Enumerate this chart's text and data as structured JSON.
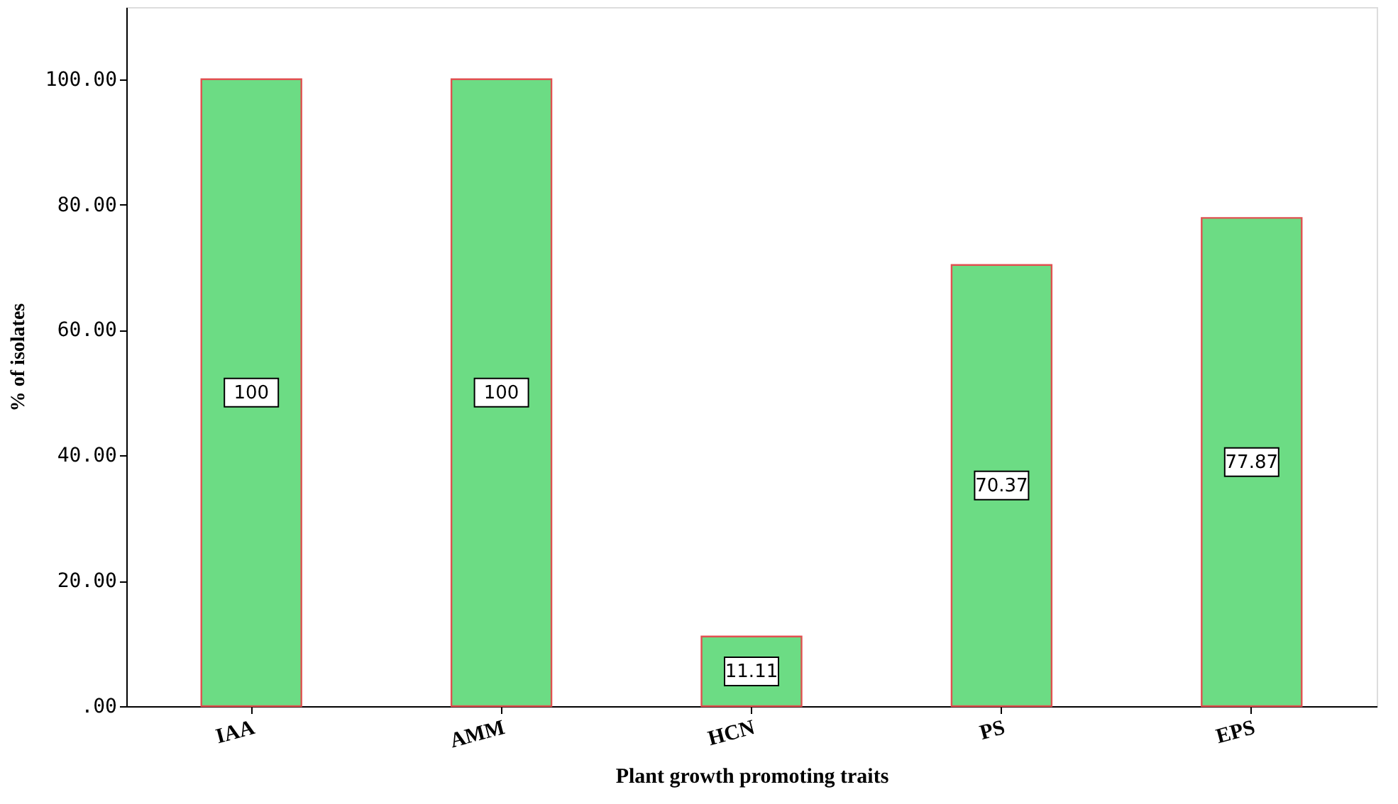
{
  "chart_data": {
    "type": "bar",
    "xlabel": "Plant growth promoting traits",
    "ylabel": "% of isolates",
    "categories": [
      "IAA",
      "AMM",
      "HCN",
      "PS",
      "EPS"
    ],
    "values": [
      100,
      100,
      11.11,
      70.37,
      77.87
    ],
    "color": "#6cdc84",
    "data_labels": true,
    "grid": false,
    "ylim": [
      0,
      111.5
    ],
    "yticks": [
      {
        "value": 0,
        "label": ".00"
      },
      {
        "value": 20,
        "label": "20.00"
      },
      {
        "value": 40,
        "label": "40.00"
      },
      {
        "value": 60,
        "label": "60.00"
      },
      {
        "value": 80,
        "label": "80.00"
      },
      {
        "value": 100,
        "label": "100.00"
      }
    ]
  }
}
